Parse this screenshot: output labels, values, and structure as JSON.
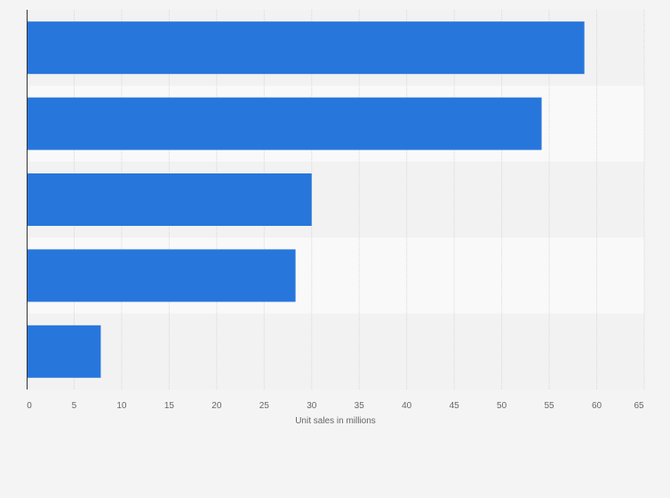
{
  "chart_data": {
    "type": "bar",
    "orientation": "horizontal",
    "categories": [
      "",
      "",
      "",
      "",
      ""
    ],
    "values": [
      58.7,
      54.2,
      30.0,
      28.3,
      7.8
    ],
    "xlabel": "Unit sales in millions",
    "ylabel": "",
    "xlim": [
      0,
      65
    ],
    "xticks": [
      0,
      5,
      10,
      15,
      20,
      25,
      30,
      35,
      40,
      45,
      50,
      55,
      60,
      65
    ],
    "grid": true,
    "legend": "none",
    "colors": {
      "bar": "#2776dc",
      "band_dark": "#f2f2f2",
      "band_light": "#f9f9f9",
      "grid": "#d8d8d8",
      "axis": "#333333",
      "background": "#f4f4f4"
    }
  }
}
